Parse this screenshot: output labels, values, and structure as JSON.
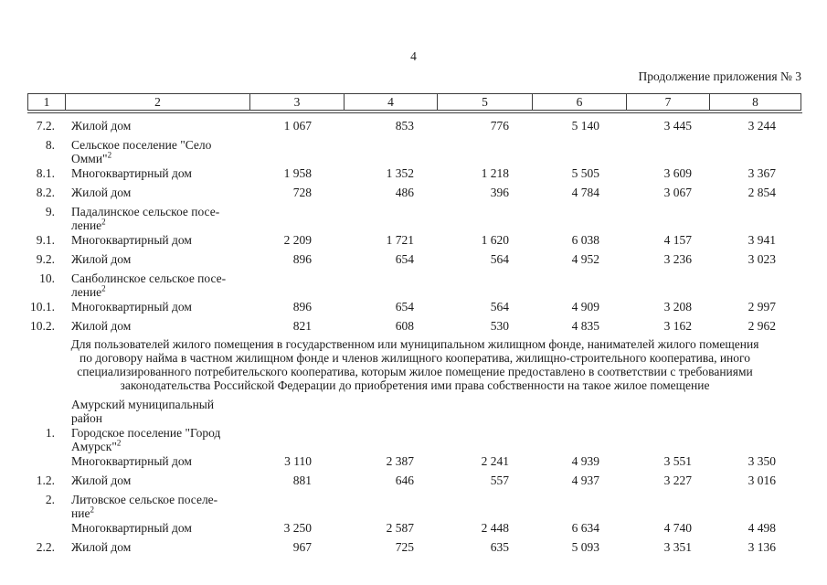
{
  "page": {
    "number": "4",
    "continuation": "Продолжение приложения № 3"
  },
  "table": {
    "header": [
      "1",
      "2",
      "3",
      "4",
      "5",
      "6",
      "7",
      "8"
    ],
    "rows_before_note": [
      {
        "num": "7.2.",
        "label": "Жилой дом",
        "sup": "",
        "values": [
          "1 067",
          "853",
          "776",
          "5 140",
          "3 445",
          "3 244"
        ]
      },
      {
        "num": "8.",
        "label": "Сельское поселение \"Село\nОмми\"",
        "sup": "2",
        "values": []
      },
      {
        "num": "8.1.",
        "label": "Многоквартирный дом",
        "sup": "",
        "values": [
          "1 958",
          "1 352",
          "1 218",
          "5 505",
          "3 609",
          "3 367"
        ]
      },
      {
        "num": "8.2.",
        "label": "Жилой дом",
        "sup": "",
        "values": [
          "728",
          "486",
          "396",
          "4 784",
          "3 067",
          "2 854"
        ]
      },
      {
        "num": "9.",
        "label": "Падалинское сельское посе-\nление",
        "sup": "2",
        "values": []
      },
      {
        "num": "9.1.",
        "label": "Многоквартирный дом",
        "sup": "",
        "values": [
          "2 209",
          "1 721",
          "1 620",
          "6 038",
          "4 157",
          "3 941"
        ]
      },
      {
        "num": "9.2.",
        "label": "Жилой дом",
        "sup": "",
        "values": [
          "896",
          "654",
          "564",
          "4 952",
          "3 236",
          "3 023"
        ]
      },
      {
        "num": "10.",
        "label": "Санболинское сельское посе-\nление",
        "sup": "2",
        "values": []
      },
      {
        "num": "10.1.",
        "label": "Многоквартирный дом",
        "sup": "",
        "values": [
          "896",
          "654",
          "564",
          "4 909",
          "3 208",
          "2 997"
        ]
      },
      {
        "num": "10.2.",
        "label": "Жилой дом",
        "sup": "",
        "values": [
          "821",
          "608",
          "530",
          "4 835",
          "3 162",
          "2 962"
        ]
      }
    ],
    "note": "Для пользователей жилого помещения в государственном или муниципальном жилищном фонде, нанимателей жилого помещения\nпо договору найма в частном жилищном фонде и членов жилищного кооператива, жилищно-строительного кооператива, иного\nспециализированного потребительского кооператива, которым жилое помещение предоставлено в соответствии с требованиями\nзаконодательства Российской Федерации до приобретения ими права собственности на такое жилое помещение",
    "rows_after_note": [
      {
        "num": "",
        "label": "Амурский муниципальный\nрайон",
        "sup": "",
        "values": []
      },
      {
        "num": "1.",
        "label": "Городское поселение \"Город\nАмурск\"",
        "sup": "2",
        "values": []
      },
      {
        "num": "",
        "label": "Многоквартирный дом",
        "sup": "",
        "values": [
          "3 110",
          "2 387",
          "2 241",
          "4 939",
          "3 551",
          "3 350"
        ]
      },
      {
        "num": "1.2.",
        "label": "Жилой дом",
        "sup": "",
        "values": [
          "881",
          "646",
          "557",
          "4 937",
          "3 227",
          "3 016"
        ]
      },
      {
        "num": "2.",
        "label": "Литовское сельское поселе-\nние",
        "sup": "2",
        "values": []
      },
      {
        "num": "",
        "label": "Многоквартирный дом",
        "sup": "",
        "values": [
          "3 250",
          "2 587",
          "2 448",
          "6 634",
          "4 740",
          "4 498"
        ]
      },
      {
        "num": "2.2.",
        "label": "Жилой дом",
        "sup": "",
        "values": [
          "967",
          "725",
          "635",
          "5 093",
          "3 351",
          "3 136"
        ]
      }
    ]
  }
}
